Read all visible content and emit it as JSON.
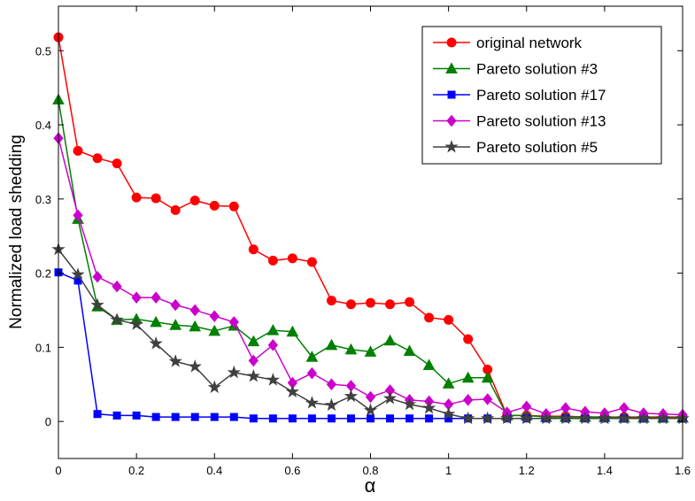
{
  "chart_data": {
    "type": "line",
    "title": "",
    "xlabel": "α",
    "ylabel": "Normalized load shedding",
    "xlim": [
      0,
      1.6
    ],
    "ylim": [
      -0.05,
      0.56
    ],
    "x_ticks": [
      "0",
      "0.2",
      "0.4",
      "0.6",
      "0.8",
      "1",
      "1.2",
      "1.4",
      "1.6"
    ],
    "y_ticks": [
      "0",
      "0.1",
      "0.2",
      "0.3",
      "0.4",
      "0.5"
    ],
    "grid": false,
    "legend_position": "top-right",
    "x": [
      0,
      0.05,
      0.1,
      0.15,
      0.2,
      0.25,
      0.3,
      0.35,
      0.4,
      0.45,
      0.5,
      0.55,
      0.6,
      0.65,
      0.7,
      0.75,
      0.8,
      0.85,
      0.9,
      0.95,
      1.0,
      1.05,
      1.1,
      1.15,
      1.2,
      1.25,
      1.3,
      1.35,
      1.4,
      1.45,
      1.5,
      1.55,
      1.6
    ],
    "series": [
      {
        "name": "original network",
        "color": "#ff0000",
        "marker": "circle",
        "values": [
          0.518,
          0.365,
          0.355,
          0.348,
          0.302,
          0.301,
          0.285,
          0.298,
          0.291,
          0.29,
          0.232,
          0.217,
          0.22,
          0.215,
          0.163,
          0.158,
          0.16,
          0.158,
          0.161,
          0.14,
          0.137,
          0.111,
          0.07,
          0.008,
          0.008,
          0.007,
          0.007,
          0.006,
          0.006,
          0.006,
          0.006,
          0.006,
          0.006
        ]
      },
      {
        "name": "Pareto solution #3",
        "color": "#008000",
        "marker": "triangle",
        "values": [
          0.434,
          0.273,
          0.155,
          0.137,
          0.138,
          0.134,
          0.13,
          0.128,
          0.122,
          0.129,
          0.108,
          0.123,
          0.121,
          0.087,
          0.103,
          0.097,
          0.094,
          0.109,
          0.095,
          0.076,
          0.051,
          0.059,
          0.059,
          0.008,
          0.008,
          0.006,
          0.006,
          0.006,
          0.006,
          0.005,
          0.005,
          0.005,
          0.005
        ]
      },
      {
        "name": "Pareto solution #17",
        "color": "#0000ff",
        "marker": "square",
        "values": [
          0.201,
          0.19,
          0.01,
          0.008,
          0.008,
          0.006,
          0.006,
          0.006,
          0.006,
          0.006,
          0.004,
          0.004,
          0.004,
          0.004,
          0.004,
          0.004,
          0.004,
          0.004,
          0.004,
          0.004,
          0.004,
          0.004,
          0.004,
          0.004,
          0.004,
          0.004,
          0.004,
          0.004,
          0.004,
          0.004,
          0.004,
          0.004,
          0.004
        ]
      },
      {
        "name": "Pareto solution #13",
        "color": "#cc00cc",
        "marker": "diamond",
        "values": [
          0.382,
          0.278,
          0.195,
          0.182,
          0.167,
          0.167,
          0.157,
          0.15,
          0.142,
          0.134,
          0.082,
          0.103,
          0.052,
          0.065,
          0.05,
          0.048,
          0.033,
          0.042,
          0.029,
          0.027,
          0.023,
          0.029,
          0.03,
          0.012,
          0.02,
          0.01,
          0.018,
          0.013,
          0.011,
          0.018,
          0.011,
          0.01,
          0.009
        ]
      },
      {
        "name": "Pareto solution #5",
        "color": "#404040",
        "marker": "star",
        "values": [
          0.232,
          0.198,
          0.157,
          0.137,
          0.131,
          0.105,
          0.081,
          0.074,
          0.046,
          0.066,
          0.061,
          0.056,
          0.04,
          0.025,
          0.022,
          0.034,
          0.015,
          0.031,
          0.023,
          0.018,
          0.01,
          0.004,
          0.004,
          0.004,
          0.004,
          0.004,
          0.004,
          0.004,
          0.004,
          0.004,
          0.004,
          0.004,
          0.004
        ]
      }
    ]
  }
}
